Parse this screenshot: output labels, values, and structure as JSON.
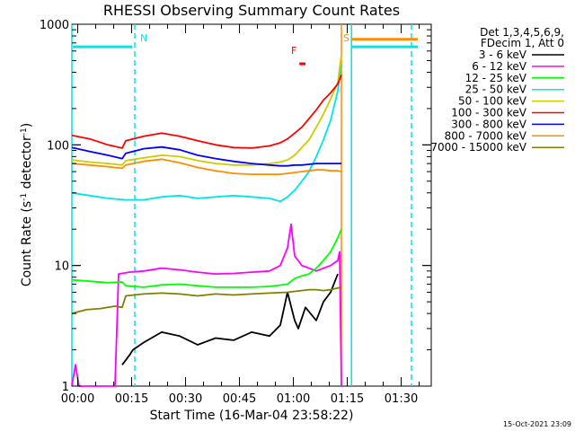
{
  "chart_data": {
    "type": "line",
    "title": "RHESSI Observing Summary Count Rates",
    "xlabel": "Start Time (16-Mar-04 23:58:22)",
    "ylabel": "Count Rate (s⁻¹ detector⁻¹)",
    "ylabel_parts": [
      "Count Rate (s",
      "-1",
      " detector",
      "-1",
      ")"
    ],
    "yscale": "log",
    "ylim": [
      1,
      1000
    ],
    "xlim": [
      0,
      100
    ],
    "x_tick_values": [
      1.63,
      16.63,
      31.63,
      46.63,
      61.63,
      76.63,
      91.63
    ],
    "x_tick_labels": [
      "00:00",
      "00:15",
      "00:30",
      "00:45",
      "01:00",
      "01:15",
      "01:30"
    ],
    "y_tick_values": [
      1,
      10,
      100,
      1000
    ],
    "y_tick_labels": [
      "1",
      "10",
      "100",
      "1000"
    ],
    "legend_header": [
      "Det 1,3,4,5,6,9,",
      "FDecim 1, Att 0"
    ],
    "legend_position": "right",
    "footer": "15-Oct-2021 23:09",
    "annotations": [
      {
        "text": "N",
        "x": 17.5,
        "color": "#00e5e5"
      },
      {
        "text": "S",
        "x": 75.5,
        "color": "#ff8c00"
      },
      {
        "text": "F",
        "x": 61.0,
        "color": "#ff0000"
      }
    ],
    "bars": [
      {
        "name": "night",
        "x0": 0.3,
        "x1": 16.8,
        "y": 650,
        "color": "#00e5e5"
      },
      {
        "name": "saa",
        "x0": 77.8,
        "x1": 100,
        "y": 750,
        "color": "#ff8c00"
      },
      {
        "name": "night",
        "x0": 77.8,
        "x1": 100,
        "y": 650,
        "color": "#00e5e5"
      },
      {
        "name": "flare",
        "x0": 63.3,
        "x1": 65.0,
        "y": 470,
        "color": "#ff0000"
      }
    ],
    "vlines": [
      {
        "x": 0.0,
        "color": "#00e5e5",
        "style": "solid"
      },
      {
        "x": 17.5,
        "color": "#00e5e5",
        "style": "dash"
      },
      {
        "x": 75.0,
        "color": "#ff8c00",
        "style": "solid"
      },
      {
        "x": 77.8,
        "color": "#00e5e5",
        "style": "solid"
      },
      {
        "x": 94.5,
        "color": "#00e5e5",
        "style": "dash"
      }
    ],
    "series": [
      {
        "name": "3 - 6 keV",
        "color": "#000000",
        "x": [
          14,
          16,
          17,
          20,
          25,
          30,
          35,
          40,
          45,
          50,
          55,
          58,
          60,
          62,
          63,
          65,
          68,
          70,
          72,
          74
        ],
        "y": [
          1.5,
          1.8,
          2.0,
          2.3,
          2.8,
          2.6,
          2.2,
          2.5,
          2.4,
          2.8,
          2.6,
          3.2,
          6,
          3.5,
          3.0,
          4.5,
          3.5,
          5.0,
          6.0,
          8.5
        ]
      },
      {
        "name": "6 - 12 keV",
        "color": "#ff00ff",
        "x": [
          0,
          1,
          2,
          12,
          13,
          16,
          20,
          25,
          30,
          35,
          40,
          45,
          50,
          55,
          58,
          60,
          61,
          62,
          64,
          66,
          68,
          70,
          72,
          74,
          74.5,
          75
        ],
        "y": [
          1.0,
          1.5,
          1.0,
          1.0,
          8.5,
          8.8,
          9.0,
          9.5,
          9.2,
          8.8,
          8.5,
          8.6,
          8.8,
          9.0,
          10,
          14,
          22,
          12,
          10,
          9.5,
          9.0,
          9.5,
          10,
          11,
          13,
          1.0
        ]
      },
      {
        "name": "12 - 25 keV",
        "color": "#00ff00",
        "x": [
          0,
          5,
          10,
          14,
          15,
          20,
          25,
          30,
          35,
          40,
          45,
          50,
          55,
          60,
          62,
          64,
          66,
          68,
          70,
          72,
          74,
          75
        ],
        "y": [
          7.6,
          7.4,
          7.2,
          7.3,
          6.8,
          6.6,
          6.9,
          7.0,
          6.8,
          6.6,
          6.6,
          6.6,
          6.7,
          7.0,
          7.8,
          8.2,
          8.5,
          9.5,
          11,
          13,
          17,
          20
        ]
      },
      {
        "name": "25 - 50 keV",
        "color": "#00e5e5",
        "x": [
          0,
          5,
          10,
          15,
          20,
          25,
          30,
          35,
          40,
          45,
          50,
          55,
          58,
          60,
          62,
          64,
          66,
          68,
          70,
          72,
          74,
          75
        ],
        "y": [
          40,
          38,
          36,
          35,
          35,
          37,
          38,
          36,
          37,
          38,
          37,
          36,
          34,
          37,
          42,
          50,
          60,
          80,
          110,
          160,
          280,
          460
        ]
      },
      {
        "name": "50 - 100 keV",
        "color": "#cccc00",
        "x": [
          0,
          5,
          10,
          14,
          15,
          20,
          25,
          30,
          35,
          40,
          45,
          50,
          55,
          58,
          60,
          62,
          64,
          66,
          68,
          70,
          72,
          74,
          75
        ],
        "y": [
          75,
          72,
          70,
          68,
          74,
          78,
          82,
          80,
          74,
          70,
          68,
          68,
          70,
          72,
          75,
          82,
          95,
          110,
          140,
          180,
          240,
          330,
          560
        ]
      },
      {
        "name": "100 - 300 keV",
        "color": "#ff0000",
        "x": [
          0,
          5,
          10,
          14,
          15,
          20,
          25,
          30,
          35,
          40,
          45,
          50,
          55,
          58,
          60,
          62,
          64,
          66,
          68,
          70,
          72,
          74,
          75
        ],
        "y": [
          120,
          112,
          100,
          94,
          108,
          118,
          125,
          118,
          108,
          100,
          95,
          94,
          98,
          104,
          112,
          125,
          140,
          165,
          195,
          235,
          270,
          320,
          380
        ]
      },
      {
        "name": "300 - 800 keV",
        "color": "#0000ff",
        "x": [
          0,
          5,
          10,
          14,
          15,
          20,
          25,
          30,
          35,
          40,
          45,
          50,
          55,
          58,
          60,
          62,
          64,
          66,
          68,
          70,
          72,
          74,
          75
        ],
        "y": [
          95,
          88,
          82,
          77,
          85,
          93,
          96,
          91,
          82,
          77,
          73,
          70,
          68,
          67,
          67,
          68,
          68,
          69,
          70,
          70,
          70,
          70,
          70
        ]
      },
      {
        "name": "800 - 7000 keV",
        "color": "#ff8c00",
        "x": [
          0,
          5,
          10,
          14,
          15,
          20,
          25,
          30,
          35,
          40,
          45,
          50,
          55,
          58,
          60,
          62,
          64,
          66,
          68,
          70,
          72,
          74,
          75
        ],
        "y": [
          70,
          68,
          66,
          64,
          68,
          73,
          76,
          71,
          65,
          61,
          58,
          57,
          57,
          57,
          58,
          59,
          60,
          61,
          62,
          62,
          61,
          61,
          60
        ]
      },
      {
        "name": "7000 - 15000 keV",
        "color": "#808000",
        "x": [
          0,
          4,
          8,
          12,
          14,
          15,
          20,
          25,
          30,
          35,
          40,
          45,
          50,
          55,
          60,
          62,
          64,
          66,
          68,
          70,
          72,
          74,
          75
        ],
        "y": [
          4.0,
          4.3,
          4.4,
          4.6,
          4.5,
          5.6,
          5.8,
          5.9,
          5.8,
          5.6,
          5.8,
          5.7,
          5.8,
          5.9,
          6.0,
          6.1,
          6.2,
          6.3,
          6.3,
          6.2,
          6.3,
          6.5,
          6.6
        ]
      }
    ]
  }
}
